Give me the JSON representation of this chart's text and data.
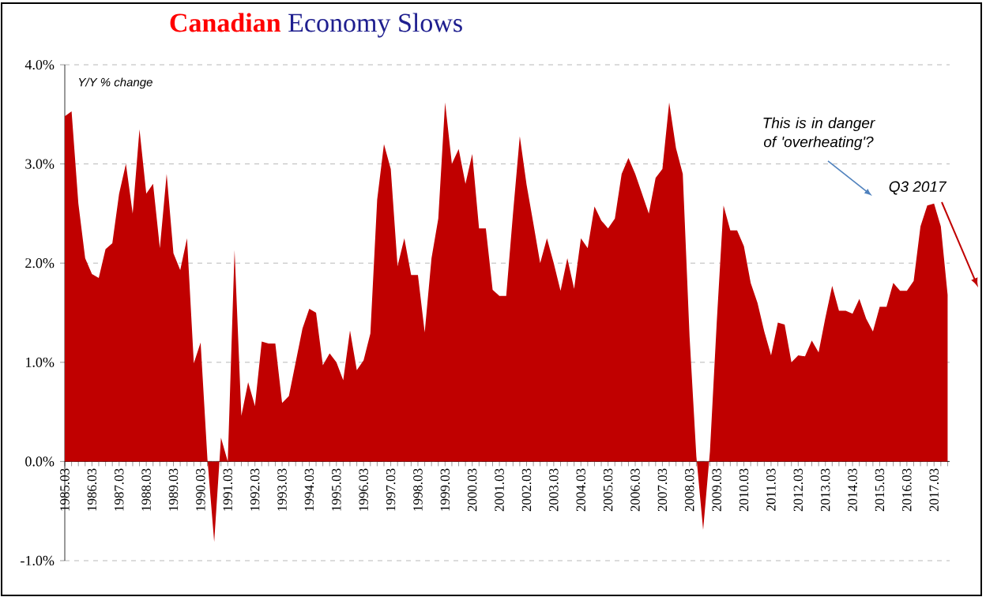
{
  "chart_data": {
    "type": "area",
    "title": "**Canadian** Economy Slows",
    "annotations": [
      "Y/Y % change",
      "This is in danger of 'overheating'?",
      "Q3 2017"
    ],
    "categories": [
      "1985.03",
      null,
      null,
      null,
      "1986.03",
      null,
      null,
      null,
      "1987.03",
      null,
      null,
      null,
      "1988.03",
      null,
      null,
      null,
      "1989.03",
      null,
      null,
      null,
      "1990.03",
      null,
      null,
      null,
      "1991.03",
      null,
      null,
      null,
      "1992.03",
      null,
      null,
      null,
      "1993.03",
      null,
      null,
      null,
      "1994.03",
      null,
      null,
      null,
      "1995.03",
      null,
      null,
      null,
      "1996.03",
      null,
      null,
      null,
      "1997.03",
      null,
      null,
      null,
      "1998.03",
      null,
      null,
      null,
      "1999.03",
      null,
      null,
      null,
      "2000.03",
      null,
      null,
      null,
      "2001.03",
      null,
      null,
      null,
      "2002.03",
      null,
      null,
      null,
      "2003.03",
      null,
      null,
      null,
      "2004.03",
      null,
      null,
      null,
      "2005.03",
      null,
      null,
      null,
      "2006.03",
      null,
      null,
      null,
      "2007.03",
      null,
      null,
      null,
      "2008.03",
      null,
      null,
      null,
      "2009.03",
      null,
      null,
      null,
      "2010.03",
      null,
      null,
      null,
      "2011.03",
      null,
      null,
      null,
      "2012.03",
      null,
      null,
      null,
      "2013.03",
      null,
      null,
      null,
      "2014.03",
      null,
      null,
      null,
      "2015.03",
      null,
      null,
      null,
      "2016.03",
      null,
      null,
      null,
      "2017.03",
      null,
      null
    ],
    "values": [
      3.48,
      3.53,
      2.6,
      2.05,
      1.89,
      1.85,
      2.14,
      2.2,
      2.7,
      3.0,
      2.5,
      3.35,
      2.7,
      2.8,
      2.15,
      2.9,
      2.1,
      1.93,
      2.25,
      0.99,
      1.2,
      0.03,
      -0.81,
      0.24,
      0.0,
      2.13,
      0.46,
      0.8,
      0.56,
      1.21,
      1.19,
      1.19,
      0.59,
      0.66,
      1.0,
      1.34,
      1.54,
      1.5,
      0.97,
      1.09,
      1.0,
      0.82,
      1.32,
      0.92,
      1.02,
      1.29,
      2.64,
      3.2,
      2.95,
      1.97,
      2.25,
      1.88,
      1.88,
      1.3,
      2.05,
      2.45,
      3.62,
      3.0,
      3.15,
      2.8,
      3.1,
      2.35,
      2.35,
      1.73,
      1.67,
      1.67,
      2.5,
      3.28,
      2.79,
      2.4,
      2.0,
      2.25,
      2.0,
      1.72,
      2.05,
      1.74,
      2.25,
      2.15,
      2.57,
      2.43,
      2.35,
      2.45,
      2.9,
      3.06,
      2.9,
      2.7,
      2.5,
      2.86,
      2.95,
      3.62,
      3.16,
      2.9,
      1.26,
      0.05,
      -0.69,
      0.1,
      1.4,
      2.58,
      2.33,
      2.33,
      2.17,
      1.8,
      1.6,
      1.31,
      1.07,
      1.4,
      1.38,
      1.0,
      1.07,
      1.06,
      1.22,
      1.1,
      1.45,
      1.77,
      1.52,
      1.52,
      1.49,
      1.64,
      1.44,
      1.31,
      1.56,
      1.56,
      1.8,
      1.72,
      1.72,
      1.82,
      2.37,
      2.58,
      2.6,
      2.37,
      1.68
    ],
    "color": "#c00000",
    "ylim": [
      -1,
      4
    ],
    "yticks": [
      {
        "value": -1,
        "label": "-1.0%"
      },
      {
        "value": 0,
        "label": "0.0%"
      },
      {
        "value": 1,
        "label": "1.0%"
      },
      {
        "value": 2,
        "label": "2.0%"
      },
      {
        "value": 3,
        "label": "3.0%"
      },
      {
        "value": 4,
        "label": "4.0%"
      }
    ],
    "grid": "y"
  }
}
